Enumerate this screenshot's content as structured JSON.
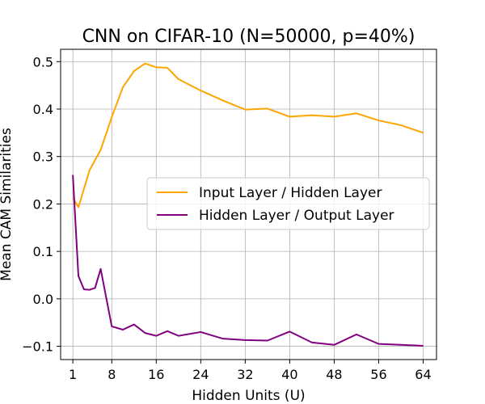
{
  "chart_data": {
    "type": "line",
    "title": "CNN on CIFAR-10 (N=50000, p=40%)",
    "xlabel": "Hidden Units (U)",
    "ylabel": "Mean CAM Similarities",
    "xlim": [
      -1.2,
      66.4
    ],
    "ylim": [
      -0.128,
      0.526
    ],
    "xticks": [
      1,
      8,
      16,
      24,
      32,
      40,
      48,
      56,
      64
    ],
    "yticks": [
      -0.1,
      0.0,
      0.1,
      0.2,
      0.3,
      0.4,
      0.5
    ],
    "ytick_labels": [
      "−0.1",
      "0.0",
      "0.1",
      "0.2",
      "0.3",
      "0.4",
      "0.5"
    ],
    "grid": true,
    "legend_position": "center-right",
    "series": [
      {
        "name": "Input Layer / Hidden Layer",
        "color": "#ffa500",
        "x": [
          1,
          2,
          3,
          4,
          6,
          8,
          10,
          12,
          14,
          16,
          18,
          20,
          24,
          28,
          32,
          36,
          40,
          44,
          48,
          52,
          56,
          60,
          64
        ],
        "y": [
          0.213,
          0.193,
          0.232,
          0.271,
          0.314,
          0.383,
          0.446,
          0.48,
          0.496,
          0.488,
          0.487,
          0.463,
          0.439,
          0.418,
          0.399,
          0.401,
          0.384,
          0.387,
          0.384,
          0.391,
          0.376,
          0.366,
          0.35
        ]
      },
      {
        "name": "Hidden Layer / Output Layer",
        "color": "#800080",
        "x": [
          1,
          2,
          3,
          4,
          5,
          6,
          8,
          10,
          12,
          14,
          16,
          18,
          20,
          24,
          28,
          32,
          36,
          40,
          44,
          48,
          52,
          56,
          60,
          64
        ],
        "y": [
          0.261,
          0.048,
          0.02,
          0.019,
          0.023,
          0.063,
          -0.058,
          -0.065,
          -0.054,
          -0.072,
          -0.078,
          -0.068,
          -0.078,
          -0.07,
          -0.084,
          -0.087,
          -0.088,
          -0.069,
          -0.092,
          -0.097,
          -0.075,
          -0.095,
          -0.097,
          -0.099
        ]
      }
    ]
  }
}
